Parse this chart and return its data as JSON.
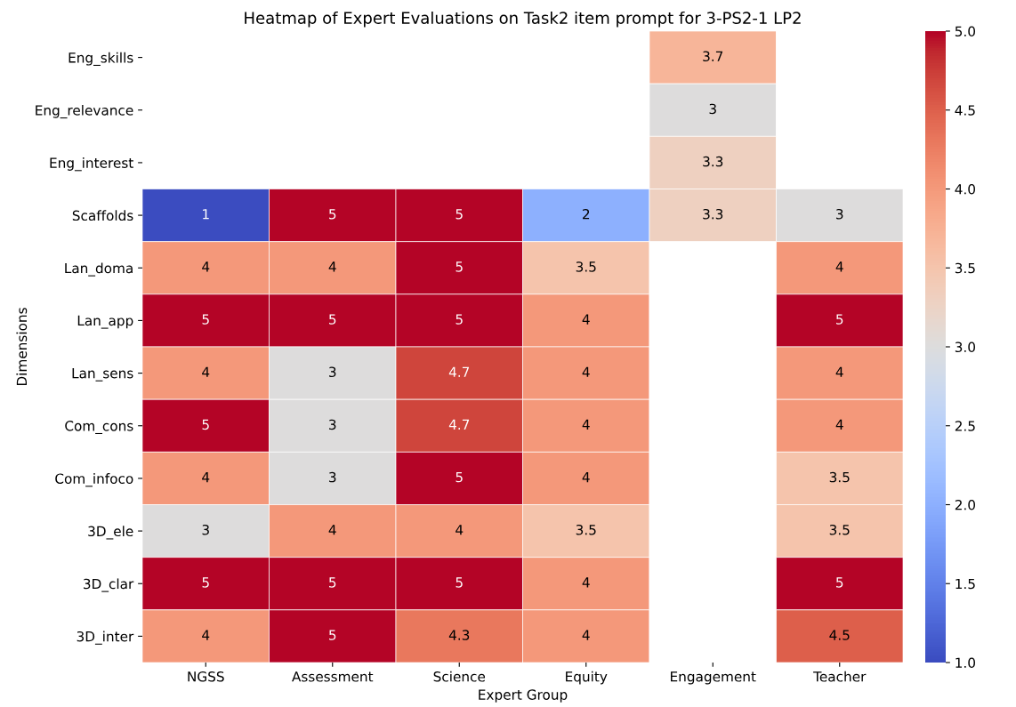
{
  "chart_data": {
    "type": "heatmap",
    "title": "Heatmap of Expert Evaluations on Task2 item prompt for 3-PS2-1 LP2",
    "xlabel": "Expert Group",
    "ylabel": "Dimensions",
    "categories": [
      "NGSS",
      "Assessment",
      "Science",
      "Equity",
      "Engagement",
      "Teacher"
    ],
    "y_categories": [
      "Eng_skills",
      "Eng_relevance",
      "Eng_interest",
      "Scaffolds",
      "Lan_doma",
      "Lan_app",
      "Lan_sens",
      "Com_cons",
      "Com_infoco",
      "3D_ele",
      "3D_clar",
      "3D_inter"
    ],
    "cells": [
      [
        null,
        null,
        null,
        null,
        3.7,
        null
      ],
      [
        null,
        null,
        null,
        null,
        3,
        null
      ],
      [
        null,
        null,
        null,
        null,
        3.3,
        null
      ],
      [
        1,
        5,
        5,
        2,
        3.3,
        3
      ],
      [
        4,
        4,
        5,
        3.5,
        null,
        4
      ],
      [
        5,
        5,
        5,
        4,
        null,
        5
      ],
      [
        4,
        3,
        4.7,
        4,
        null,
        4
      ],
      [
        5,
        3,
        4.7,
        4,
        null,
        4
      ],
      [
        4,
        3,
        5,
        4,
        null,
        3.5
      ],
      [
        3,
        4,
        4,
        3.5,
        null,
        3.5
      ],
      [
        5,
        5,
        5,
        4,
        null,
        5
      ],
      [
        4,
        5,
        4.3,
        4,
        null,
        4.5
      ]
    ],
    "clim": [
      1,
      5
    ],
    "cticks": [
      {
        "value": 1,
        "label": "1.0"
      },
      {
        "value": 1.5,
        "label": "1.5"
      },
      {
        "value": 2,
        "label": "2.0"
      },
      {
        "value": 2.5,
        "label": "2.5"
      },
      {
        "value": 3,
        "label": "3.0"
      },
      {
        "value": 3.5,
        "label": "3.5"
      },
      {
        "value": 4,
        "label": "4.0"
      },
      {
        "value": 4.5,
        "label": "4.5"
      },
      {
        "value": 5,
        "label": "5.0"
      }
    ],
    "data_labels": true
  }
}
